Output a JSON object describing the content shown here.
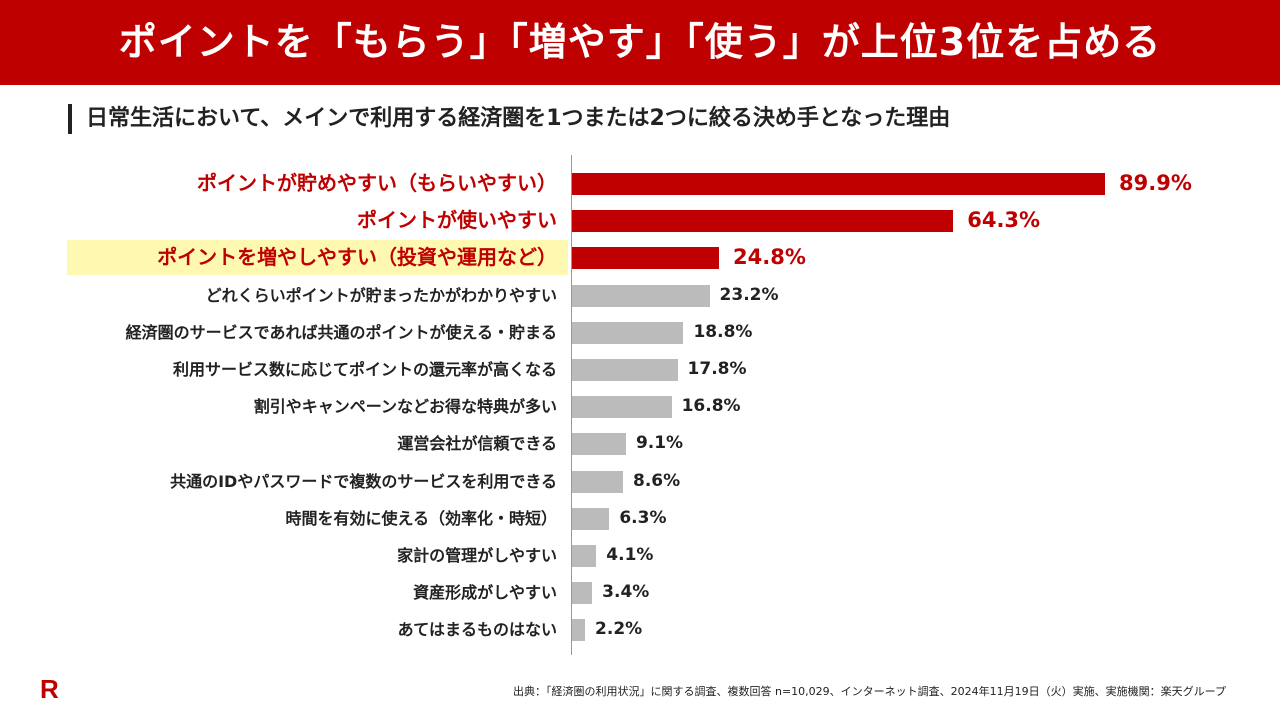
{
  "header": {
    "title": "ポイントを「もらう」「増やす」「使う」が上位3位を占める"
  },
  "logo": {
    "text": "R"
  },
  "footer": {
    "source": "出典：「経済圏の利用状況」に関する調査、複数回答 n=10,029、インターネット調査、2024年11月19日（火）実施、実施機関：楽天グループ"
  },
  "colors": {
    "highlight_bar": "#c00000",
    "other_bar": "#bbbbbb",
    "highlight_background": "#fff8b0",
    "header": "#bf0000"
  },
  "chart_data": {
    "type": "bar",
    "orientation": "horizontal",
    "title": "日常生活において、メインで利用する経済圏を1つまたは2つに絞る決め手となった理由",
    "unit": "%",
    "xlim": [
      0,
      100
    ],
    "grid": false,
    "categories": [
      "ポイントが貯めやすい（もらいやすい）",
      "ポイントが使いやすい",
      "ポイントを増やしやすい（投資や運用など）",
      "どれくらいポイントが貯まったかがわかりやすい",
      "経済圏のサービスであれば共通のポイントが使える・貯まる",
      "利用サービス数に応じてポイントの還元率が高くなる",
      "割引やキャンペーンなどお得な特典が多い",
      "運営会社が信頼できる",
      "共通のIDやパスワードで複数のサービスを利用できる",
      "時間を有効に使える（効率化・時短）",
      "家計の管理がしやすい",
      "資産形成がしやすい",
      "あてはまるものはない"
    ],
    "values": [
      89.9,
      64.3,
      24.8,
      23.2,
      18.8,
      17.8,
      16.8,
      9.1,
      8.6,
      6.3,
      4.1,
      3.4,
      2.2
    ],
    "value_labels": [
      "89.9%",
      "64.3%",
      "24.8%",
      "23.2%",
      "18.8%",
      "17.8%",
      "16.8%",
      "9.1%",
      "8.6%",
      "6.3%",
      "4.1%",
      "3.4%",
      "2.2%"
    ],
    "highlighted_top": 3
  }
}
